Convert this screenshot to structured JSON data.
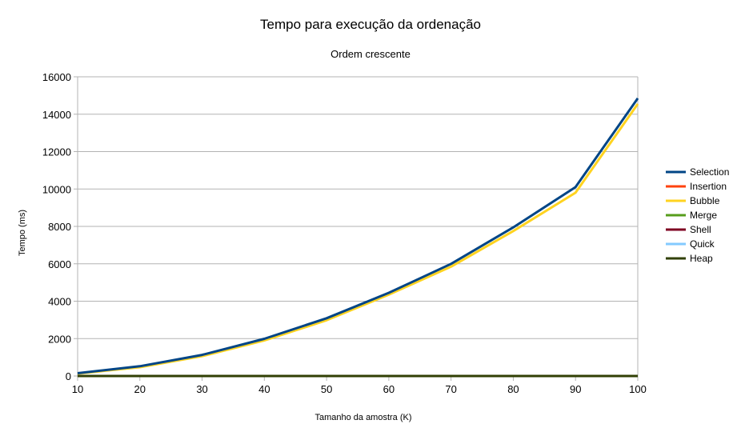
{
  "chart_data": {
    "type": "line",
    "title": "Tempo para execução da ordenação",
    "subtitle": "Ordem crescente",
    "xlabel": "Tamanho da amostra (K)",
    "ylabel": "Tempo (ms)",
    "x": [
      10,
      20,
      30,
      40,
      50,
      60,
      70,
      80,
      90,
      100
    ],
    "xlim": [
      10,
      100
    ],
    "ylim": [
      0,
      16000
    ],
    "xticks": [
      "10",
      "20",
      "30",
      "40",
      "50",
      "60",
      "70",
      "80",
      "90",
      "100"
    ],
    "yticks": [
      "0",
      "2000",
      "4000",
      "6000",
      "8000",
      "10000",
      "12000",
      "14000",
      "16000"
    ],
    "grid": true,
    "legend_position": "right",
    "series": [
      {
        "name": "Selection",
        "color": "#004586",
        "values": [
          150,
          520,
          1130,
          1990,
          3090,
          4450,
          6000,
          7950,
          10100,
          14850
        ]
      },
      {
        "name": "Insertion",
        "color": "#ff420e",
        "values": [
          0,
          0,
          0,
          0,
          0,
          0,
          0,
          0,
          0,
          0
        ]
      },
      {
        "name": "Bubble",
        "color": "#ffd320",
        "values": [
          130,
          470,
          1060,
          1900,
          2980,
          4350,
          5850,
          7750,
          9800,
          14550
        ]
      },
      {
        "name": "Merge",
        "color": "#579d1c",
        "values": [
          0,
          0,
          0,
          0,
          0,
          0,
          0,
          0,
          0,
          0
        ]
      },
      {
        "name": "Shell",
        "color": "#7e0021",
        "values": [
          0,
          0,
          0,
          0,
          0,
          0,
          0,
          0,
          0,
          0
        ]
      },
      {
        "name": "Quick",
        "color": "#83caff",
        "values": [
          0,
          0,
          0,
          0,
          0,
          0,
          0,
          0,
          0,
          0
        ]
      },
      {
        "name": "Heap",
        "color": "#314004",
        "values": [
          0,
          0,
          0,
          0,
          0,
          0,
          0,
          0,
          0,
          0
        ]
      }
    ]
  }
}
